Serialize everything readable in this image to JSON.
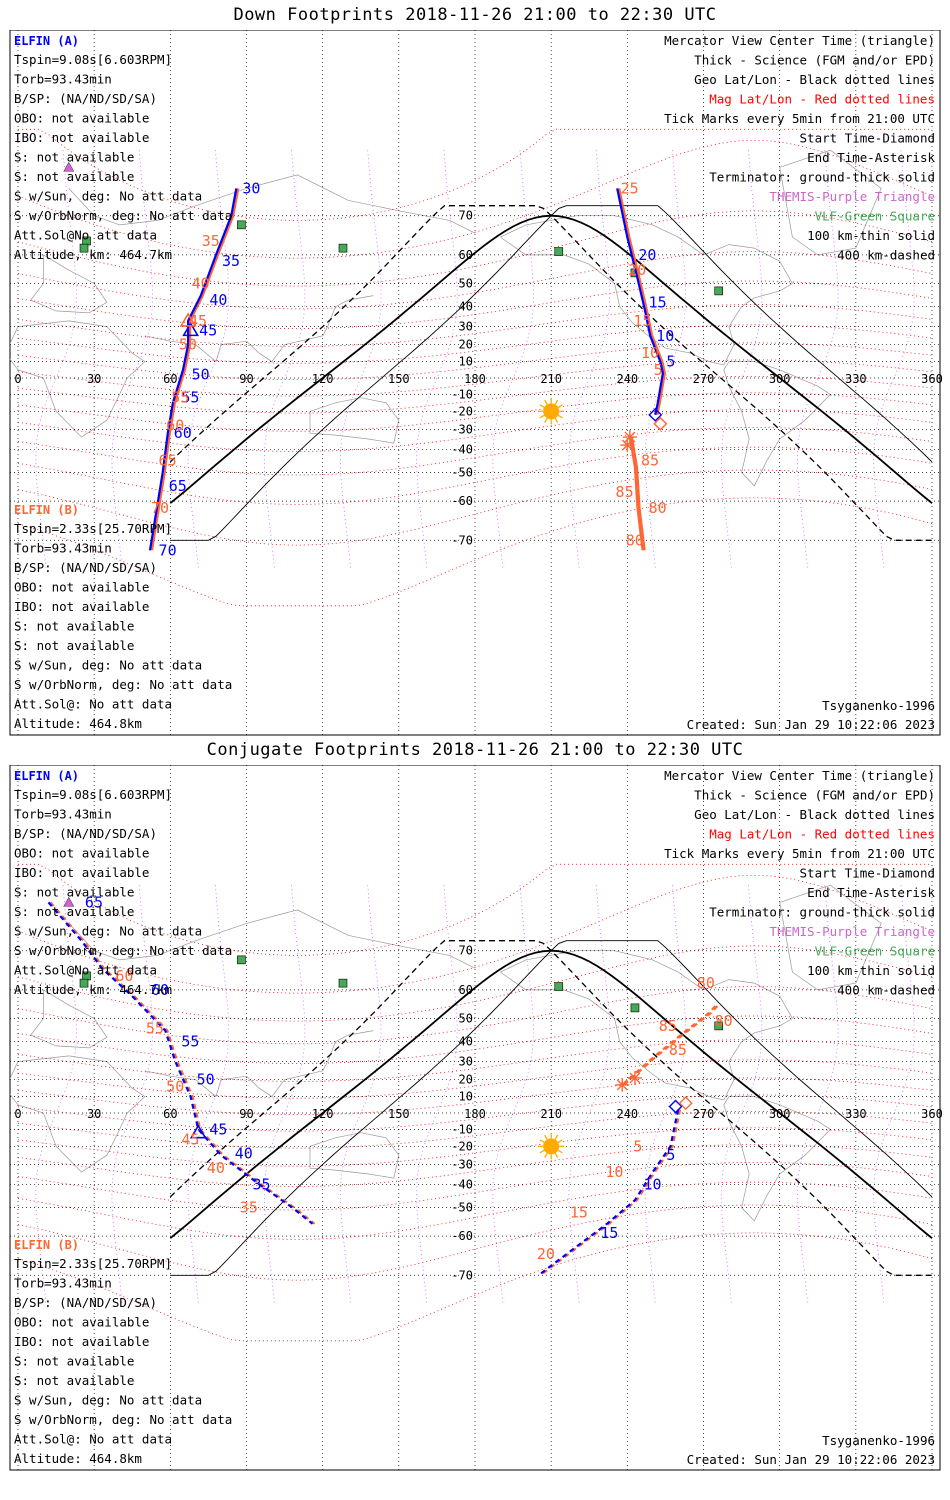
{
  "panels": [
    {
      "id": "down",
      "title": "Down Footprints 2018-11-26 21:00 to 22:30 UTC",
      "info_a": {
        "label": "ELFIN (A)",
        "lines": [
          "Tspin=9.08s[6.603RPM]",
          "Torb=93.43min",
          "B/SP: (NA/ND/SD/SA)",
          "OBO: not available",
          "IBO: not available",
          "S: not available",
          "S: not available",
          "S w/Sun, deg: No att data",
          "S w/OrbNorm, deg: No att data",
          "Att.Sol@No att data",
          "Altitude, km: 464.7km"
        ]
      },
      "info_b": {
        "label": "ELFIN (B)",
        "lines": [
          "Tspin=2.33s[25.70RPM]",
          "Torb=93.43min",
          "B/SP: (NA/ND/SD/SA)",
          "OBO: not available",
          "IBO: not available",
          "S: not available",
          "S: not available",
          "S w/Sun, deg: No att data",
          "S w/OrbNorm, deg: No att data",
          "Att.Sol@: No att data",
          "Altitude: 464.8km"
        ]
      },
      "legend": [
        "Mercator View Center Time (triangle)",
        "Thick - Science (FGM and/or EPD)",
        "Geo Lat/Lon - Black dotted lines",
        "Mag Lat/Lon - Red dotted lines",
        "Tick Marks every 5min from 21:00 UTC",
        "Start Time-Diamond",
        "End Time-Asterisk",
        "Terminator: ground-thick solid",
        "THEMIS-Purple Triangle",
        "VLF-Green Square",
        "100 km-thin solid",
        "400 km-dashed"
      ],
      "model": "Tsyganenko-1996",
      "created": "Created: Sun Jan 29 10:22:06 2023"
    },
    {
      "id": "conjugate",
      "title": "Conjugate Footprints 2018-11-26 21:00 to 22:30 UTC",
      "info_a": {
        "label": "ELFIN (A)",
        "lines": [
          "Tspin=9.08s[6.603RPM]",
          "Torb=93.43min",
          "B/SP: (NA/ND/SD/SA)",
          "OBO: not available",
          "IBO: not available",
          "S: not available",
          "S: not available",
          "S w/Sun, deg: No att data",
          "S w/OrbNorm, deg: No att data",
          "Att.Sol@No att data",
          "Altitude, km: 464.7km"
        ]
      },
      "info_b": {
        "label": "ELFIN (B)",
        "lines": [
          "Tspin=2.33s[25.70RPM]",
          "Torb=93.43min",
          "B/SP: (NA/ND/SD/SA)",
          "OBO: not available",
          "IBO: not available",
          "S: not available",
          "S: not available",
          "S w/Sun, deg: No att data",
          "S w/OrbNorm, deg: No att data",
          "Att.Sol@: No att data",
          "Altitude: 464.8km"
        ]
      },
      "legend": [
        "Mercator View Center Time (triangle)",
        "Thick - Science (FGM and/or EPD)",
        "Geo Lat/Lon - Black dotted lines",
        "Mag Lat/Lon - Red dotted lines",
        "Tick Marks every 5min from 21:00 UTC",
        "Start Time-Diamond",
        "End Time-Asterisk",
        "Terminator: ground-thick solid",
        "THEMIS-Purple Triangle",
        "VLF-Green Square",
        "100 km-thin solid",
        "400 km-dashed"
      ],
      "model": "Tsyganenko-1996",
      "created": "Created: Sun Jan 29 10:22:06 2023"
    }
  ],
  "colors": {
    "elfin_a": "#0000ff",
    "elfin_b": "#ff6633",
    "mag_grid": "#ff0000",
    "geo_grid": "#000000",
    "themis": "#cc66cc",
    "vlf": "#44aa55",
    "sun": "#ffaa00",
    "coast": "#999999"
  },
  "chart_data": [
    {
      "type": "scatter",
      "title": "Down Footprints 2018-11-26 21:00 to 22:30 UTC",
      "xlabel": "",
      "ylabel": "",
      "xlim": [
        0,
        360
      ],
      "ylim": [
        -70,
        70
      ],
      "x_ticks": [
        0,
        30,
        60,
        90,
        120,
        150,
        180,
        210,
        240,
        270,
        300,
        330,
        360
      ],
      "y_ticks": [
        70,
        60,
        50,
        40,
        30,
        20,
        10,
        -10,
        -20,
        -30,
        -40,
        -50,
        -60,
        -70
      ],
      "grid": true,
      "sun": {
        "lon": 210,
        "lat": -20
      },
      "themis": [
        {
          "lon": 20,
          "lat": 78
        }
      ],
      "vlf": [
        {
          "lon": 88,
          "lat": 68
        },
        {
          "lon": 27,
          "lat": 64
        },
        {
          "lon": 26,
          "lat": 62
        },
        {
          "lon": 128,
          "lat": 62
        },
        {
          "lon": 213,
          "lat": 61
        },
        {
          "lon": 243,
          "lat": 54
        },
        {
          "lon": 276,
          "lat": 47
        }
      ],
      "series": [
        {
          "name": "ELFIN (A)",
          "points": [
            {
              "lon": 86,
              "lat": 75
            },
            {
              "lon": 84,
              "lat": 70
            },
            {
              "lon": 78,
              "lat": 60
            },
            {
              "lon": 72,
              "lat": 45
            },
            {
              "lon": 67,
              "lat": 33
            },
            {
              "lon": 67,
              "lat": 20
            },
            {
              "lon": 65,
              "lat": 5
            },
            {
              "lon": 61,
              "lat": -15
            },
            {
              "lon": 59,
              "lat": -32
            },
            {
              "lon": 57,
              "lat": -50
            },
            {
              "lon": 54,
              "lat": -65
            },
            {
              "lon": 52,
              "lat": -72
            }
          ],
          "ticks": [
            {
              "label": "30",
              "lon": 86,
              "lat": 75
            },
            {
              "label": "35",
              "lon": 78,
              "lat": 58
            },
            {
              "label": "40",
              "lon": 73,
              "lat": 43
            },
            {
              "label": "45",
              "lon": 69,
              "lat": 28
            },
            {
              "label": "50",
              "lon": 66,
              "lat": 2
            },
            {
              "label": "55",
              "lon": 62,
              "lat": -12
            },
            {
              "label": "60",
              "lon": 59,
              "lat": -32
            },
            {
              "label": "65",
              "lon": 57,
              "lat": -55
            },
            {
              "label": "70",
              "lon": 53,
              "lat": -72
            }
          ],
          "view_center": {
            "lon": 68,
            "lat": 28
          }
        },
        {
          "name": "ELFIN (A)",
          "points": [
            {
              "lon": 236,
              "lat": 75
            },
            {
              "lon": 240,
              "lat": 65
            },
            {
              "lon": 244,
              "lat": 52
            },
            {
              "lon": 247,
              "lat": 38
            },
            {
              "lon": 249,
              "lat": 25
            },
            {
              "lon": 253,
              "lat": 10
            },
            {
              "lon": 254,
              "lat": 3
            },
            {
              "lon": 252,
              "lat": -15
            },
            {
              "lon": 251,
              "lat": -22
            }
          ],
          "ticks": [
            {
              "label": "20",
              "lon": 242,
              "lat": 60
            },
            {
              "label": "15",
              "lon": 246,
              "lat": 42
            },
            {
              "label": "10",
              "lon": 249,
              "lat": 25
            },
            {
              "label": "5",
              "lon": 253,
              "lat": 10
            }
          ],
          "start": {
            "lon": 251,
            "lat": -22
          }
        },
        {
          "name": "ELFIN (B)",
          "points": [
            {
              "lon": 241,
              "lat": -34
            },
            {
              "lon": 243,
              "lat": -48
            },
            {
              "lon": 244,
              "lat": -62
            },
            {
              "lon": 246,
              "lat": -72
            }
          ],
          "ticks": [
            {
              "label": "85",
              "lon": 243,
              "lat": -45
            },
            {
              "label": "80",
              "lon": 246,
              "lat": -62
            }
          ],
          "end": {
            "lon": 241,
            "lat": -34
          }
        },
        {
          "name": "ELFIN (B)",
          "ticks": [
            {
              "label": "25",
              "lon": 235,
              "lat": 75
            },
            {
              "label": "20",
              "lon": 238,
              "lat": 55
            },
            {
              "label": "15",
              "lon": 240,
              "lat": 33
            },
            {
              "label": "10",
              "lon": 243,
              "lat": 15
            },
            {
              "label": "5",
              "lon": 248,
              "lat": 5
            },
            {
              "label": "35",
              "lon": 70,
              "lat": 64
            },
            {
              "label": "40",
              "lon": 66,
              "lat": 50
            },
            {
              "label": "45",
              "lon": 65,
              "lat": 33
            },
            {
              "label": "50",
              "lon": 61,
              "lat": 20
            },
            {
              "label": "55",
              "lon": 58,
              "lat": -12
            },
            {
              "label": "60",
              "lon": 56,
              "lat": -28
            },
            {
              "label": "65",
              "lon": 53,
              "lat": -45
            },
            {
              "label": "70",
              "lon": 50,
              "lat": -62
            },
            {
              "label": "85",
              "lon": 233,
              "lat": -57
            },
            {
              "label": "80",
              "lon": 237,
              "lat": -70
            }
          ],
          "start": {
            "lon": 253,
            "lat": -27
          },
          "end": {
            "lon": 240,
            "lat": -38
          },
          "view_center": {
            "lon": 67,
            "lat": 33
          }
        }
      ]
    },
    {
      "type": "scatter",
      "title": "Conjugate Footprints 2018-11-26 21:00 to 22:30 UTC",
      "xlabel": "",
      "ylabel": "",
      "xlim": [
        0,
        360
      ],
      "ylim": [
        -70,
        70
      ],
      "x_ticks": [
        0,
        30,
        60,
        90,
        120,
        150,
        180,
        210,
        240,
        270,
        300,
        330,
        360
      ],
      "y_ticks": [
        70,
        60,
        50,
        40,
        30,
        20,
        10,
        -10,
        -20,
        -30,
        -40,
        -50,
        -60,
        -70
      ],
      "grid": true,
      "sun": {
        "lon": 210,
        "lat": -20
      },
      "themis": [
        {
          "lon": 20,
          "lat": 78
        }
      ],
      "vlf": [
        {
          "lon": 88,
          "lat": 68
        },
        {
          "lon": 27,
          "lat": 64
        },
        {
          "lon": 26,
          "lat": 62
        },
        {
          "lon": 128,
          "lat": 62
        },
        {
          "lon": 213,
          "lat": 61
        },
        {
          "lon": 243,
          "lat": 54
        },
        {
          "lon": 276,
          "lat": 47
        }
      ],
      "series": [
        {
          "name": "ELFIN (A)",
          "points": [
            {
              "lon": 12,
              "lat": 78
            },
            {
              "lon": 25,
              "lat": 72
            },
            {
              "lon": 33,
              "lat": 66
            },
            {
              "lon": 45,
              "lat": 58
            },
            {
              "lon": 58,
              "lat": 45
            },
            {
              "lon": 62,
              "lat": 30
            },
            {
              "lon": 68,
              "lat": 10
            },
            {
              "lon": 71,
              "lat": -10
            },
            {
              "lon": 80,
              "lat": -25
            },
            {
              "lon": 95,
              "lat": -40
            },
            {
              "lon": 108,
              "lat": -50
            },
            {
              "lon": 116,
              "lat": -56
            }
          ],
          "ticks": [
            {
              "label": "65",
              "lon": 24,
              "lat": 78
            },
            {
              "label": "60",
              "lon": 50,
              "lat": 60
            },
            {
              "label": "55",
              "lon": 62,
              "lat": 40
            },
            {
              "label": "50",
              "lon": 68,
              "lat": 20
            },
            {
              "label": "45",
              "lon": 73,
              "lat": -10
            },
            {
              "label": "40",
              "lon": 83,
              "lat": -24
            },
            {
              "label": "35",
              "lon": 90,
              "lat": -40
            }
          ],
          "view_center": {
            "lon": 71,
            "lat": -12
          }
        },
        {
          "name": "ELFIN (A)",
          "points": [
            {
              "lon": 260,
              "lat": 2
            },
            {
              "lon": 257,
              "lat": -20
            },
            {
              "lon": 250,
              "lat": -34
            },
            {
              "lon": 243,
              "lat": -47
            },
            {
              "lon": 232,
              "lat": -56
            },
            {
              "lon": 212,
              "lat": -67
            },
            {
              "lon": 205,
              "lat": -70
            }
          ],
          "ticks": [
            {
              "label": "5",
              "lon": 253,
              "lat": -25
            },
            {
              "label": "10",
              "lon": 244,
              "lat": -40
            },
            {
              "label": "15",
              "lon": 227,
              "lat": -59
            }
          ],
          "start": {
            "lon": 259,
            "lat": 4
          }
        },
        {
          "name": "ELFIN (B)",
          "points": [
            {
              "lon": 238,
              "lat": 17
            },
            {
              "lon": 250,
              "lat": 32
            },
            {
              "lon": 262,
              "lat": 44
            },
            {
              "lon": 272,
              "lat": 52
            },
            {
              "lon": 275,
              "lat": 55
            }
          ],
          "ticks": [
            {
              "label": "85",
              "lon": 254,
              "lat": 36
            },
            {
              "label": "80",
              "lon": 272,
              "lat": 49
            }
          ],
          "end": {
            "lon": 238,
            "lat": 17
          }
        },
        {
          "name": "ELFIN (B)",
          "ticks": [
            {
              "label": "60",
              "lon": 36,
              "lat": 64
            },
            {
              "label": "55",
              "lon": 48,
              "lat": 46
            },
            {
              "label": "50",
              "lon": 56,
              "lat": 16
            },
            {
              "label": "45",
              "lon": 62,
              "lat": -16
            },
            {
              "label": "40",
              "lon": 72,
              "lat": -32
            },
            {
              "label": "35",
              "lon": 85,
              "lat": -50
            },
            {
              "label": "80",
              "lon": 265,
              "lat": 62
            },
            {
              "label": "85",
              "lon": 250,
              "lat": 47
            },
            {
              "label": "5",
              "lon": 240,
              "lat": -20
            },
            {
              "label": "10",
              "lon": 229,
              "lat": -34
            },
            {
              "label": "15",
              "lon": 215,
              "lat": -52
            },
            {
              "label": "20",
              "lon": 202,
              "lat": -65
            }
          ],
          "start": {
            "lon": 263,
            "lat": 6
          },
          "end": {
            "lon": 243,
            "lat": 21
          }
        }
      ]
    }
  ]
}
